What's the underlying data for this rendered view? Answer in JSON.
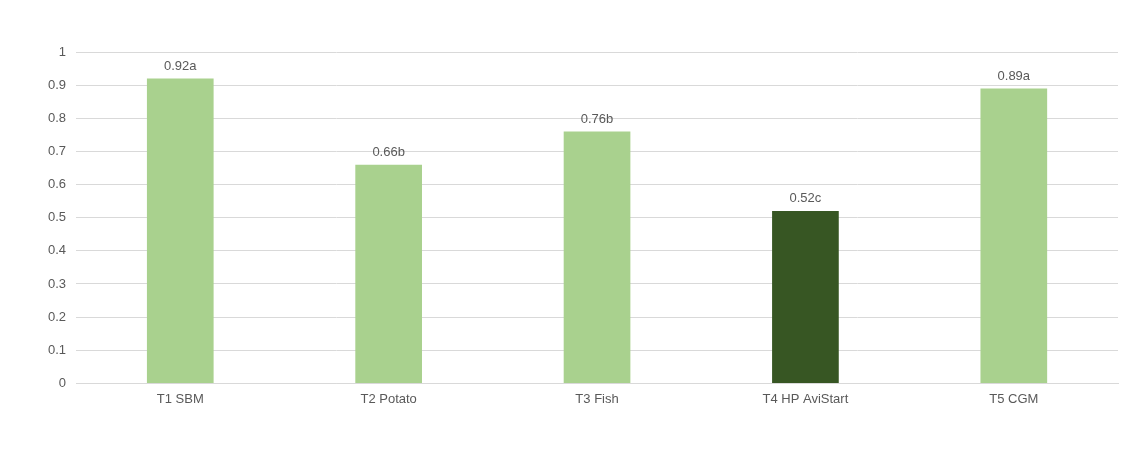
{
  "chart_data": {
    "type": "bar",
    "categories": [
      "T1 SBM",
      "T2 Potato",
      "T3 Fish",
      "T4 HP AviStart",
      "T5 CGM"
    ],
    "values": [
      0.92,
      0.66,
      0.76,
      0.52,
      0.89
    ],
    "value_labels": [
      "0.92a",
      "0.66b",
      "0.76b",
      "0.52c",
      "0.89a"
    ],
    "colors": [
      "#a9d18e",
      "#a9d18e",
      "#a9d18e",
      "#375623",
      "#a9d18e"
    ],
    "ylim": [
      0,
      1
    ],
    "yticks": [
      0,
      0.1,
      0.2,
      0.3,
      0.4,
      0.5,
      0.6,
      0.7,
      0.8,
      0.9,
      1
    ],
    "grid": true,
    "data_labels": true
  }
}
